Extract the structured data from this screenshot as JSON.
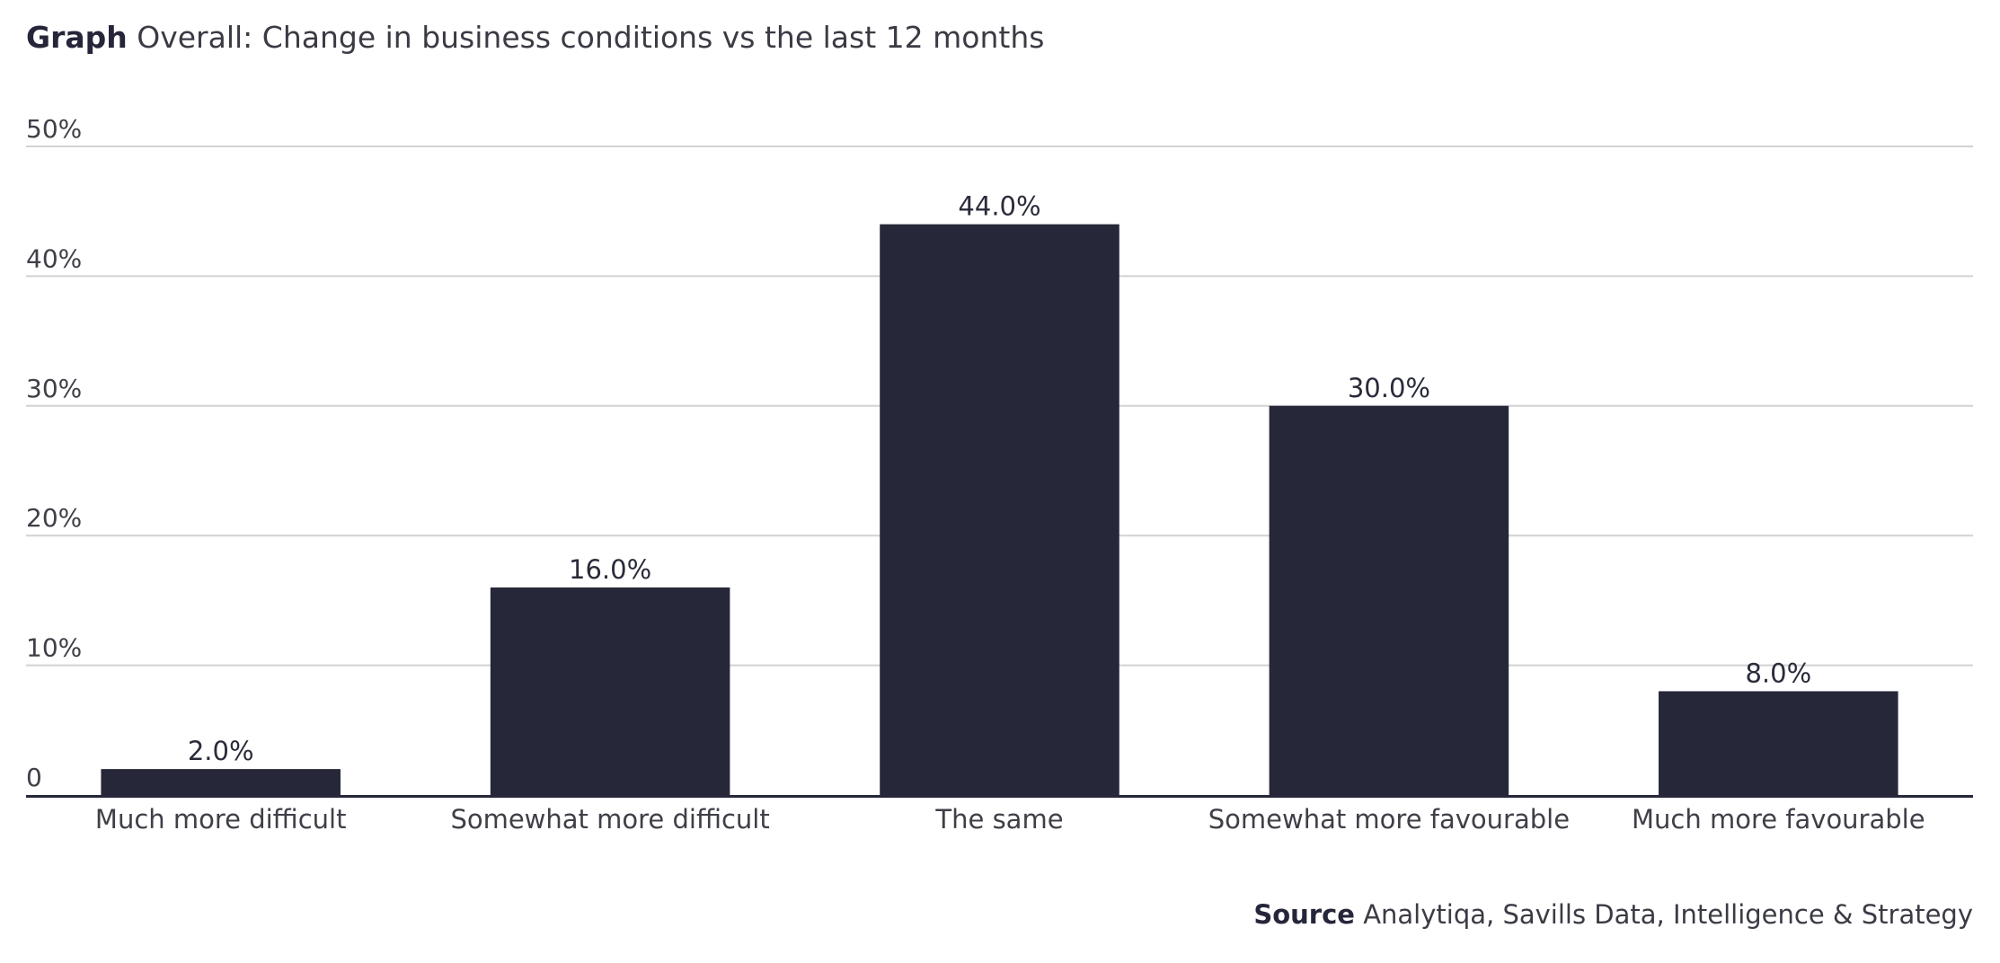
{
  "header": {
    "title_prefix": "Graph",
    "title_text": "Overall: Change in business conditions vs the last 12 months"
  },
  "footer": {
    "source_prefix": "Source",
    "source_text": "Analytiqa, Savills Data, Intelligence & Strategy"
  },
  "colors": {
    "bar": "#262738",
    "grid": "#d2d2d2",
    "axis": "#262738"
  },
  "chart_data": {
    "type": "bar",
    "title": "Overall: Change in business conditions vs the last 12 months",
    "xlabel": "",
    "ylabel": "",
    "categories": [
      "Much more difficult",
      "Somewhat more difficult",
      "The same",
      "Somewhat more favourable",
      "Much more favourable"
    ],
    "values": [
      2.0,
      16.0,
      44.0,
      30.0,
      8.0
    ],
    "value_labels": [
      "2.0%",
      "16.0%",
      "44.0%",
      "30.0%",
      "8.0%"
    ],
    "ylim": [
      0,
      50
    ],
    "yticks": [
      0,
      10,
      20,
      30,
      40,
      50
    ],
    "ytick_labels": [
      "0",
      "10%",
      "20%",
      "30%",
      "40%",
      "50%"
    ],
    "grid": true,
    "legend": "none"
  }
}
